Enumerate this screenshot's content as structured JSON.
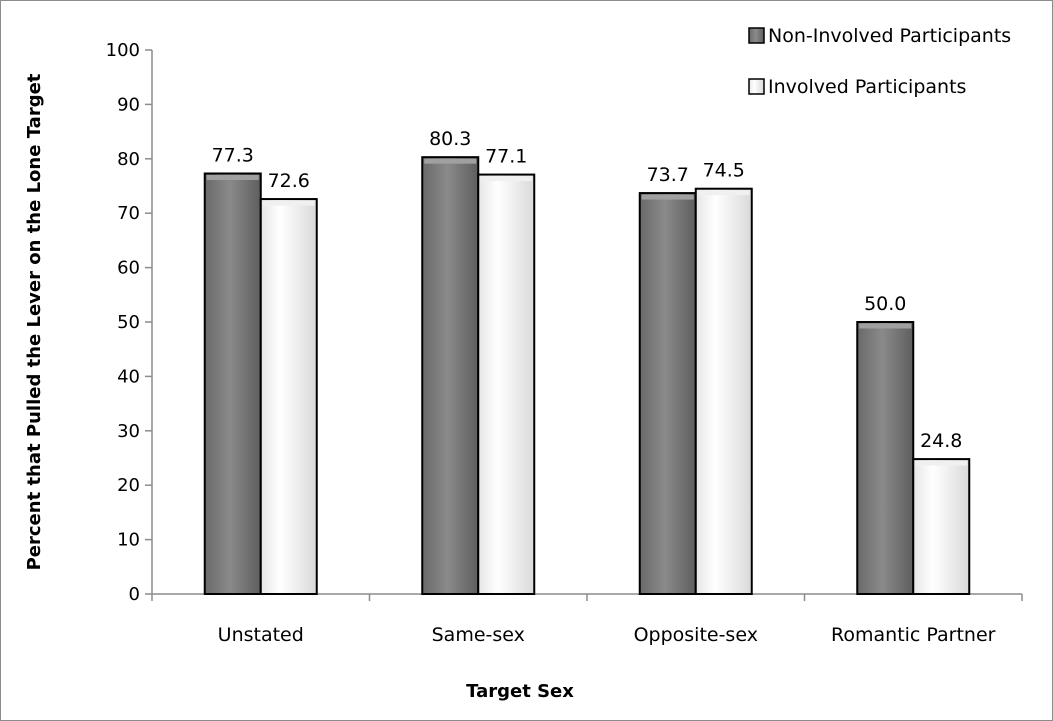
{
  "chart_data": {
    "type": "bar",
    "title": "",
    "xlabel": "Target Sex",
    "ylabel": "Percent that Pulled the Lever on the Lone Target",
    "categories": [
      "Unstated",
      "Same-sex",
      "Opposite-sex",
      "Romantic Partner"
    ],
    "series": [
      {
        "name": "Non-Involved Participants",
        "values": [
          77.3,
          80.3,
          73.7,
          50.0
        ],
        "labels": [
          "77.3",
          "80.3",
          "73.7",
          "50.0"
        ],
        "color": "#7f7f7f"
      },
      {
        "name": "Involved Participants",
        "values": [
          72.6,
          77.1,
          74.5,
          24.8
        ],
        "labels": [
          "72.6",
          "77.1",
          "74.5",
          "24.8"
        ],
        "color": "#ffffff"
      }
    ],
    "ylim": [
      0,
      100
    ],
    "yticks": [
      0,
      10,
      20,
      30,
      40,
      50,
      60,
      70,
      80,
      90,
      100
    ],
    "ytick_labels": [
      "0",
      "10",
      "20",
      "30",
      "40",
      "50",
      "60",
      "70",
      "80",
      "90",
      "100"
    ],
    "grid": false,
    "legend_position": "top-right"
  }
}
